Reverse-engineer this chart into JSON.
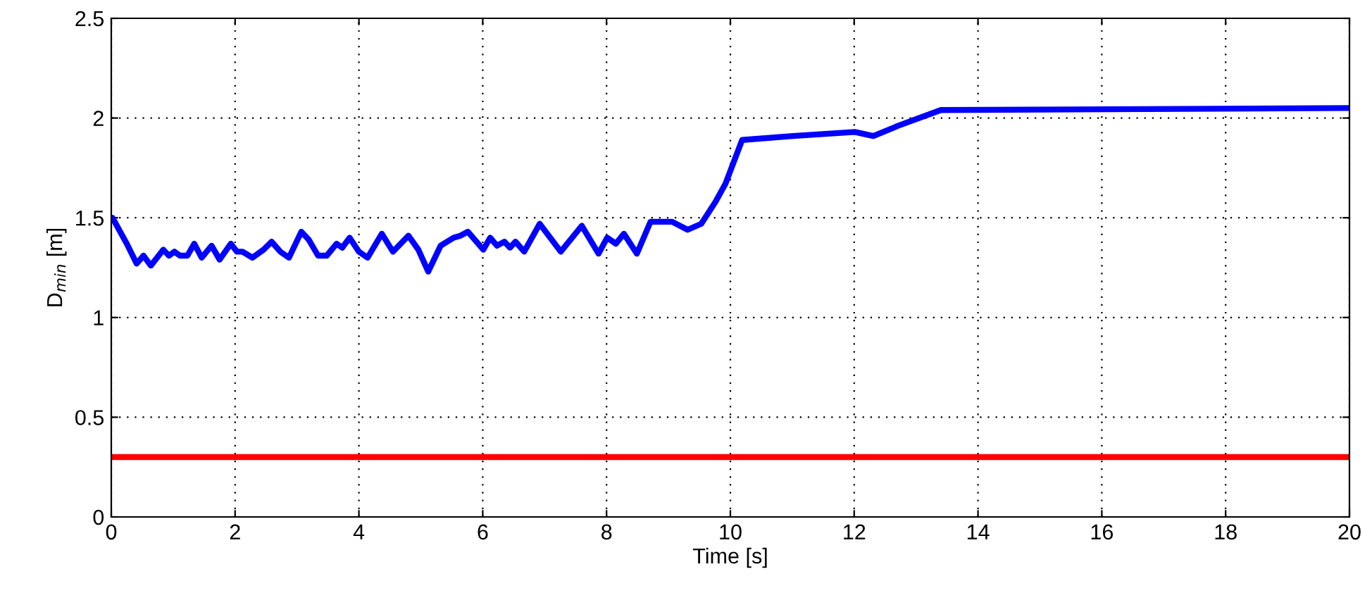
{
  "chart_data": {
    "type": "line",
    "xlabel": "Time [s]",
    "ylabel": "D$_{min}$ [m]",
    "xlim": [
      0,
      20
    ],
    "ylim": [
      0,
      2.5
    ],
    "xticks": [
      0,
      2,
      4,
      6,
      8,
      10,
      12,
      14,
      16,
      18,
      20
    ],
    "yticks": [
      0,
      0.5,
      1,
      1.5,
      2,
      2.5
    ],
    "grid": true,
    "line_style": "solid",
    "marker": "none",
    "series": [
      {
        "color": "#0000ff",
        "x": [
          0.02,
          0.25,
          0.41,
          0.52,
          0.64,
          0.84,
          0.93,
          1.02,
          1.11,
          1.23,
          1.34,
          1.46,
          1.62,
          1.75,
          1.93,
          2.03,
          2.12,
          2.28,
          2.46,
          2.59,
          2.73,
          2.87,
          3.07,
          3.19,
          3.34,
          3.48,
          3.64,
          3.73,
          3.85,
          4.0,
          4.14,
          4.37,
          4.55,
          4.8,
          4.96,
          5.12,
          5.32,
          5.53,
          5.64,
          5.76,
          6.01,
          6.12,
          6.23,
          6.35,
          6.44,
          6.53,
          6.67,
          6.92,
          7.26,
          7.6,
          7.87,
          8.01,
          8.15,
          8.28,
          8.49,
          8.71,
          9.06,
          9.31,
          9.53,
          9.76,
          9.92,
          10.19,
          11.01,
          12.01,
          12.31,
          12.7,
          13.4,
          20
        ],
        "values": [
          1.5,
          1.37,
          1.27,
          1.31,
          1.26,
          1.34,
          1.31,
          1.33,
          1.31,
          1.31,
          1.37,
          1.3,
          1.36,
          1.29,
          1.37,
          1.33,
          1.33,
          1.3,
          1.34,
          1.38,
          1.33,
          1.3,
          1.43,
          1.39,
          1.31,
          1.31,
          1.37,
          1.35,
          1.4,
          1.33,
          1.3,
          1.42,
          1.33,
          1.41,
          1.34,
          1.23,
          1.36,
          1.4,
          1.41,
          1.43,
          1.34,
          1.4,
          1.36,
          1.38,
          1.35,
          1.38,
          1.33,
          1.47,
          1.33,
          1.46,
          1.32,
          1.4,
          1.37,
          1.42,
          1.32,
          1.48,
          1.48,
          1.44,
          1.47,
          1.58,
          1.67,
          1.89,
          1.91,
          1.93,
          1.91,
          1.96,
          2.04,
          2.05
        ]
      },
      {
        "color": "#ff0000",
        "x": [
          0,
          20
        ],
        "values": [
          0.3,
          0.3
        ]
      }
    ]
  }
}
